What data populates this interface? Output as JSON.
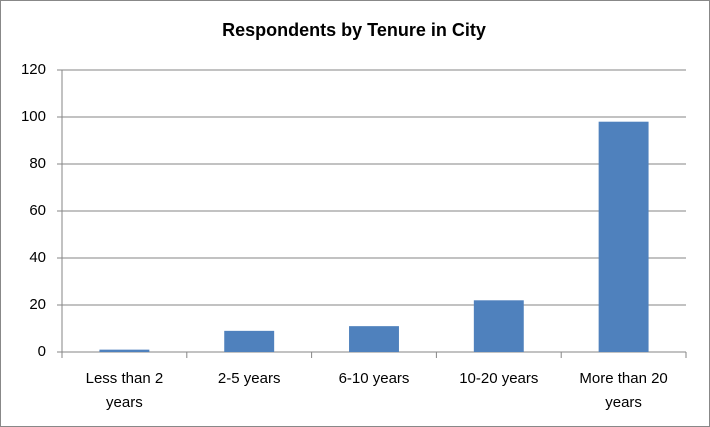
{
  "chart_data": {
    "type": "bar",
    "title": "Respondents by Tenure in City",
    "categories": [
      "Less than 2 years",
      "2-5 years",
      "6-10 years",
      "10-20 years",
      "More than 20 years"
    ],
    "values": [
      1,
      9,
      11,
      22,
      98
    ],
    "color": "#4f81bd",
    "ylim": [
      0,
      120
    ],
    "yticks": [
      0,
      20,
      40,
      60,
      80,
      100,
      120
    ],
    "grid": true
  }
}
